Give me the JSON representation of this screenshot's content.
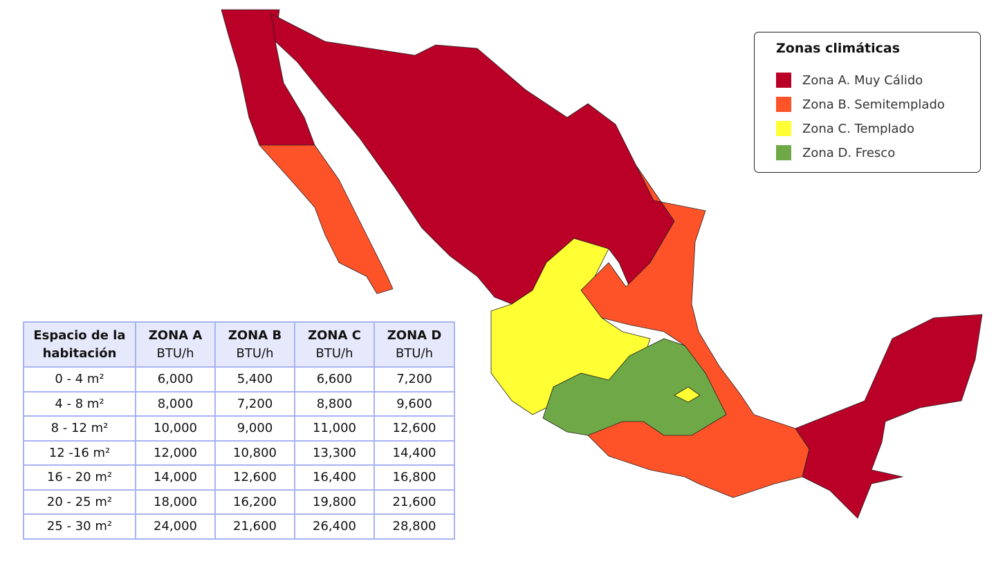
{
  "legend": {
    "title": "Zonas climáticas",
    "items": [
      {
        "label": "Zona A. Muy Cálido",
        "color": "#bb0027"
      },
      {
        "label": "Zona B. Semitemplado",
        "color": "#fe5329"
      },
      {
        "label": "Zona C. Templado",
        "color": "#ffff33"
      },
      {
        "label": "Zona D. Fresco",
        "color": "#6fa846"
      }
    ]
  },
  "table": {
    "header": [
      {
        "title": "Espacio de la habitación"
      },
      {
        "title": "ZONA A",
        "unit": "BTU/h"
      },
      {
        "title": "ZONA B",
        "unit": "BTU/h"
      },
      {
        "title": "ZONA C",
        "unit": "BTU/h"
      },
      {
        "title": "ZONA D",
        "unit": "BTU/h"
      }
    ],
    "rows": [
      [
        "0 - 4 m²",
        "6,000",
        "5,400",
        "6,600",
        "7,200"
      ],
      [
        "4 - 8 m²",
        "8,000",
        "7,200",
        "8,800",
        "9,600"
      ],
      [
        "8 - 12 m²",
        "10,000",
        "9,000",
        "11,000",
        "12,600"
      ],
      [
        "12 -16 m²",
        "12,000",
        "10,800",
        "13,300",
        "14,400"
      ],
      [
        "16 - 20 m²",
        "14,000",
        "12,600",
        "16,400",
        "16,800"
      ],
      [
        "20 - 25 m²",
        "18,000",
        "16,200",
        "19,800",
        "21,600"
      ],
      [
        "25 - 30 m²",
        "24,000",
        "21,600",
        "26,400",
        "28,800"
      ]
    ]
  }
}
